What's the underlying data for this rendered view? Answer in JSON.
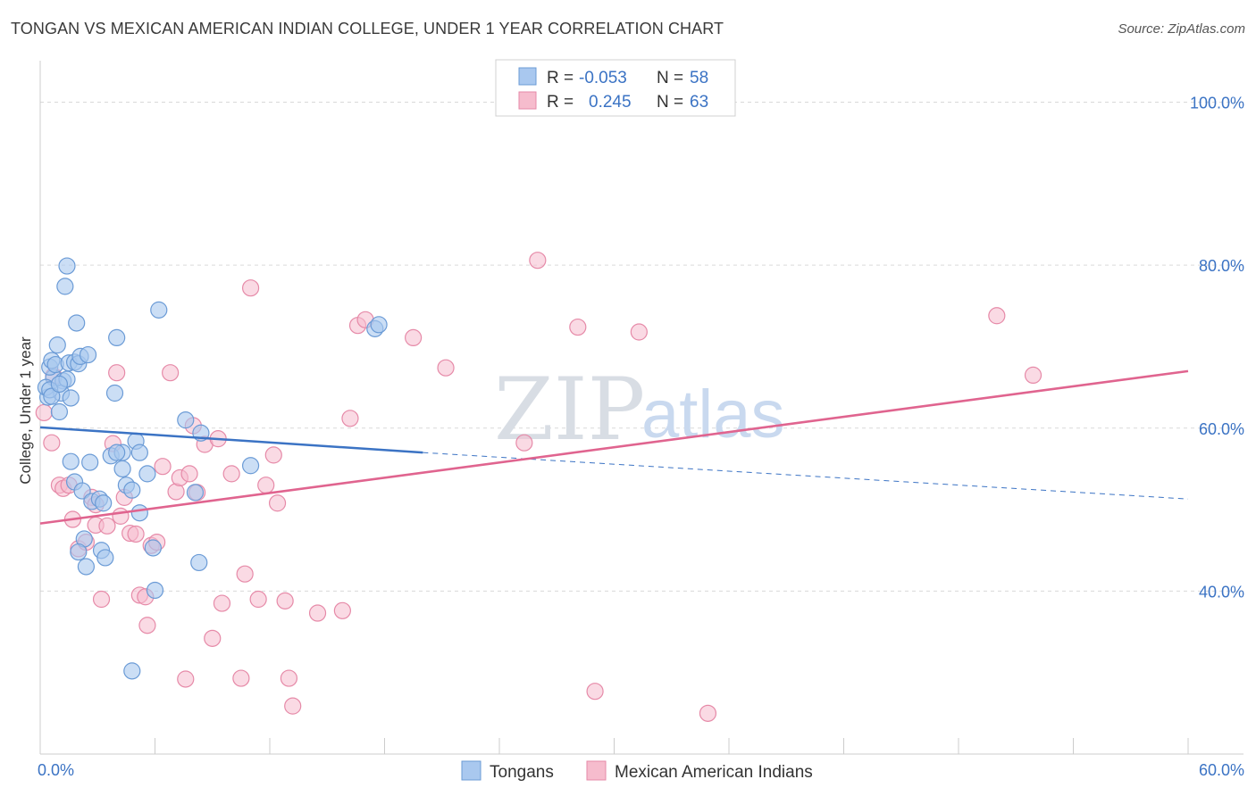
{
  "header": {
    "title": "TONGAN VS MEXICAN AMERICAN INDIAN COLLEGE, UNDER 1 YEAR CORRELATION CHART",
    "source": "Source: ZipAtlas.com"
  },
  "legend": {
    "rows": [
      {
        "r_label": "R =",
        "r_value": "-0.053",
        "n_label": "N =",
        "n_value": "58"
      },
      {
        "r_label": "R =",
        "r_value": "0.245",
        "n_label": "N =",
        "n_value": "63"
      }
    ]
  },
  "watermark": {
    "part1": "ZIP",
    "part2": "atlas"
  },
  "colors": {
    "tongan_fill": "#a9c8ef",
    "tongan_stroke": "#6b9bd6",
    "tongan_line": "#3b73c4",
    "mexican_fill": "#f6bccd",
    "mexican_stroke": "#e68aa8",
    "mexican_line": "#e0648f",
    "grid": "#d9d9d9",
    "axis_text": "#3b73c4"
  },
  "chart_data": {
    "type": "scatter",
    "title": "TONGAN VS MEXICAN AMERICAN INDIAN COLLEGE, UNDER 1 YEAR CORRELATION CHART",
    "xlabel": "",
    "ylabel": "College, Under 1 year",
    "xlim": [
      0,
      60
    ],
    "ylim": [
      20,
      104
    ],
    "x_tick_labels": [
      "0.0%",
      "60.0%"
    ],
    "y_ticks": [
      40,
      60,
      80,
      100
    ],
    "y_tick_labels": [
      "40.0%",
      "60.0%",
      "80.0%",
      "100.0%"
    ],
    "grid": true,
    "legend_position": "top-center",
    "series": [
      {
        "name": "Tongans",
        "R": -0.053,
        "N": 58,
        "trend": {
          "x0": 0,
          "y0": 60.1,
          "x1": 20,
          "y1": 57.0,
          "dash_x1": 60,
          "dash_y1": 51.3
        },
        "points": [
          [
            0.4,
            63.8
          ],
          [
            0.7,
            66.2
          ],
          [
            0.3,
            65.0
          ],
          [
            0.5,
            67.5
          ],
          [
            0.6,
            68.3
          ],
          [
            0.8,
            67.8
          ],
          [
            0.9,
            70.2
          ],
          [
            1.2,
            65.8
          ],
          [
            1.1,
            64.3
          ],
          [
            1.4,
            66.0
          ],
          [
            1.0,
            62.0
          ],
          [
            1.5,
            68.0
          ],
          [
            1.8,
            68.1
          ],
          [
            2.0,
            67.9
          ],
          [
            2.1,
            68.8
          ],
          [
            2.5,
            69.0
          ],
          [
            1.3,
            77.4
          ],
          [
            1.4,
            79.9
          ],
          [
            1.9,
            72.9
          ],
          [
            4.0,
            71.1
          ],
          [
            6.2,
            74.5
          ],
          [
            17.5,
            72.2
          ],
          [
            17.7,
            72.7
          ],
          [
            3.9,
            64.3
          ],
          [
            1.6,
            63.7
          ],
          [
            1.6,
            55.9
          ],
          [
            2.6,
            55.8
          ],
          [
            1.8,
            53.4
          ],
          [
            2.2,
            52.3
          ],
          [
            2.7,
            51.0
          ],
          [
            3.1,
            51.3
          ],
          [
            3.3,
            50.8
          ],
          [
            3.7,
            56.6
          ],
          [
            4.3,
            57.0
          ],
          [
            4.0,
            57.0
          ],
          [
            5.0,
            58.4
          ],
          [
            4.3,
            55.0
          ],
          [
            4.5,
            53.0
          ],
          [
            4.8,
            52.4
          ],
          [
            5.6,
            54.4
          ],
          [
            5.2,
            49.6
          ],
          [
            7.6,
            61.0
          ],
          [
            8.4,
            59.4
          ],
          [
            11.0,
            55.4
          ],
          [
            8.1,
            52.1
          ],
          [
            2.3,
            46.4
          ],
          [
            2.0,
            44.8
          ],
          [
            3.2,
            45.0
          ],
          [
            3.4,
            44.1
          ],
          [
            2.4,
            43.0
          ],
          [
            5.9,
            45.3
          ],
          [
            8.3,
            43.5
          ],
          [
            6.0,
            40.1
          ],
          [
            4.8,
            30.2
          ],
          [
            5.2,
            57.0
          ],
          [
            0.5,
            64.7
          ],
          [
            0.6,
            63.9
          ],
          [
            1.0,
            65.4
          ]
        ]
      },
      {
        "name": "Mexican American Indians",
        "R": 0.245,
        "N": 63,
        "trend": {
          "x0": 0,
          "y0": 48.3,
          "x1": 60,
          "y1": 67.0
        },
        "points": [
          [
            0.2,
            61.9
          ],
          [
            0.6,
            58.2
          ],
          [
            0.7,
            66.4
          ],
          [
            1.0,
            53.0
          ],
          [
            1.2,
            52.6
          ],
          [
            1.5,
            53.0
          ],
          [
            1.7,
            48.8
          ],
          [
            2.0,
            45.2
          ],
          [
            2.4,
            46.0
          ],
          [
            2.7,
            51.5
          ],
          [
            2.9,
            48.1
          ],
          [
            3.2,
            39.0
          ],
          [
            3.5,
            48.0
          ],
          [
            3.8,
            58.1
          ],
          [
            4.0,
            66.8
          ],
          [
            4.2,
            49.2
          ],
          [
            4.4,
            51.5
          ],
          [
            4.7,
            47.1
          ],
          [
            5.0,
            47.0
          ],
          [
            5.2,
            39.5
          ],
          [
            5.5,
            39.3
          ],
          [
            5.6,
            35.8
          ],
          [
            5.8,
            45.6
          ],
          [
            6.1,
            46.0
          ],
          [
            6.4,
            55.3
          ],
          [
            6.8,
            66.8
          ],
          [
            7.1,
            52.2
          ],
          [
            7.3,
            53.9
          ],
          [
            7.6,
            29.2
          ],
          [
            7.8,
            54.4
          ],
          [
            8.0,
            60.3
          ],
          [
            8.2,
            52.1
          ],
          [
            8.6,
            58.0
          ],
          [
            9.0,
            34.2
          ],
          [
            9.3,
            58.7
          ],
          [
            9.5,
            38.5
          ],
          [
            10.0,
            54.4
          ],
          [
            10.5,
            29.3
          ],
          [
            10.7,
            42.1
          ],
          [
            11.0,
            77.2
          ],
          [
            11.4,
            39.0
          ],
          [
            11.8,
            53.0
          ],
          [
            12.2,
            56.7
          ],
          [
            12.4,
            50.8
          ],
          [
            12.8,
            38.8
          ],
          [
            13.0,
            29.3
          ],
          [
            13.2,
            25.9
          ],
          [
            14.5,
            37.3
          ],
          [
            15.8,
            37.6
          ],
          [
            16.2,
            61.2
          ],
          [
            16.6,
            72.6
          ],
          [
            17.0,
            73.3
          ],
          [
            19.5,
            71.1
          ],
          [
            21.2,
            67.4
          ],
          [
            25.3,
            58.2
          ],
          [
            26.0,
            80.6
          ],
          [
            28.1,
            72.4
          ],
          [
            29.0,
            27.7
          ],
          [
            31.3,
            71.8
          ],
          [
            34.9,
            25.0
          ],
          [
            50.0,
            73.8
          ],
          [
            51.9,
            66.5
          ],
          [
            2.9,
            50.6
          ]
        ]
      }
    ]
  },
  "bottom_legend": {
    "items": [
      {
        "label": "Tongans"
      },
      {
        "label": "Mexican American Indians"
      }
    ]
  }
}
